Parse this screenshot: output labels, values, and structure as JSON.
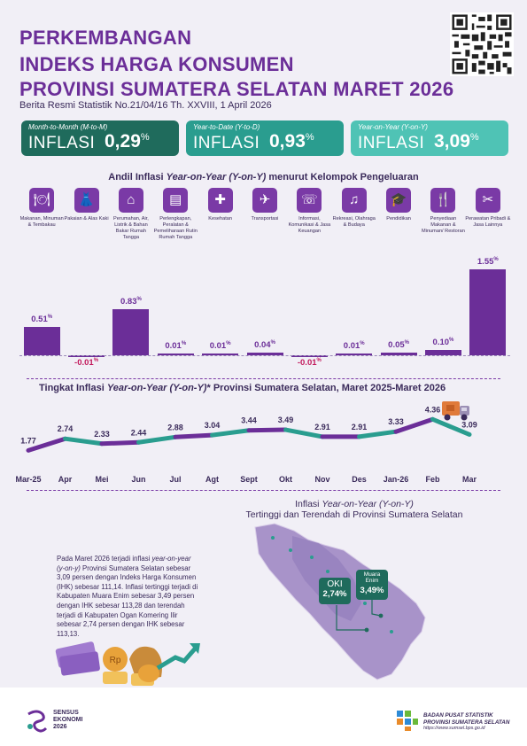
{
  "header": {
    "title_line1": "PERKEMBANGAN",
    "title_line2": "INDEKS HARGA KONSUMEN",
    "title_line3": "PROVINSI SUMATERA SELATAN MARET 2026",
    "subtitle": "Berita Resmi Statistik No.21/04/16 Th. XXVIII, 1 April 2026"
  },
  "cards": [
    {
      "type": "Month-to-Month (M-to-M)",
      "label": "INFLASI",
      "value": "0,29",
      "unit": "%",
      "color": "#1f6b5c"
    },
    {
      "type": "Year-to-Date (Y-to-D)",
      "label": "INFLASI",
      "value": "0,93",
      "unit": "%",
      "color": "#2a9d8f"
    },
    {
      "type": "Year-on-Year (Y-on-Y)",
      "label": "INFLASI",
      "value": "3,09",
      "unit": "%",
      "color": "#4fc3b5"
    }
  ],
  "bar_section": {
    "title_prefix": "Andil Inflasi ",
    "title_italic": "Year-on-Year (Y-on-Y)",
    "title_suffix": " menurut Kelompok Pengeluaran"
  },
  "line_section": {
    "title_prefix": "Tingkat Inflasi ",
    "title_italic": "Year-on-Year (Y-on-Y)",
    "title_suffix": "* Provinsi Sumatera Selatan, Maret 2025-Maret 2026"
  },
  "map_section": {
    "title_line1_prefix": "Inflasi ",
    "title_line1_italic": "Year-on-Year (Y-on-Y)",
    "title_line2": "Tertinggi dan Terendah di Provinsi Sumatera Selatan",
    "callout_low_name": "OKI",
    "callout_low_value": "2,74%",
    "callout_high_name_1": "Muara",
    "callout_high_name_2": "Enim",
    "callout_high_value": "3,49%",
    "paragraph_1": "Pada Maret 2026 terjadi inflasi",
    "paragraph_2": "year-on-year (y-on-y)",
    "paragraph_3": " Provinsi Sumatera Selatan sebesar 3,09 persen dengan Indeks Harga Konsumen (IHK) sebesar 111,14. Inflasi tertinggi terjadi di Kabupaten Muara Enim sebesar 3,49 persen dengan IHK sebesar 113,28 dan terendah terjadi di Kabupaten Ogan Komering Ilir sebesar 2,74 persen dengan IHK sebesar 113,13."
  },
  "footer": {
    "sensus_1": "SENSUS",
    "sensus_2": "EKONOMI",
    "sensus_3": "2026",
    "bps_1": "BADAN PUSAT STATISTIK",
    "bps_2": "PROVINSI SUMATERA SELATAN",
    "bps_3": "https://www.sumsel.bps.go.id"
  },
  "colors": {
    "purple": "#6b2e98",
    "teal": "#2a9d8f",
    "negative": "#c2185b"
  },
  "chart_data": [
    {
      "type": "bar",
      "categories": [
        "Makanan, Minuman & Tembakau",
        "Pakaian & Alas Kaki",
        "Perumahan, Air, Listrik & Bahan Bakar Rumah Tangga",
        "Perlengkapan, Peralatan & Pemeliharaan Rutin Rumah Tangga",
        "Kesehatan",
        "Transportasi",
        "Informasi, Komunikasi & Jasa Keuangan",
        "Rekreasi, Olahraga & Budaya",
        "Pendidikan",
        "Penyediaan Makanan & Minuman/ Restoran",
        "Perawatan Pribadi & Jasa Lainnya"
      ],
      "icons": [
        "food-icon",
        "clothing-icon",
        "house-icon",
        "appliance-icon",
        "health-icon",
        "transport-icon",
        "phone-icon",
        "recreation-icon",
        "education-icon",
        "restaurant-icon",
        "personal-care-icon"
      ],
      "values": [
        0.51,
        -0.01,
        0.83,
        0.01,
        0.01,
        0.04,
        -0.01,
        0.01,
        0.05,
        0.1,
        1.55
      ],
      "labels": [
        "0.51",
        "-0.01",
        "0.83",
        "0.01",
        "0.01",
        "0.04",
        "-0.01",
        "0.01",
        "0.05",
        "0.10",
        "1.55"
      ],
      "unit": "%"
    },
    {
      "type": "line",
      "x": [
        "Mar-25",
        "Apr",
        "Mei",
        "Jun",
        "Jul",
        "Agt",
        "Sept",
        "Okt",
        "Nov",
        "Des",
        "Jan-26",
        "Feb",
        "Mar"
      ],
      "values": [
        1.77,
        2.74,
        2.33,
        2.44,
        2.88,
        3.04,
        3.44,
        3.49,
        2.91,
        2.91,
        3.33,
        4.36,
        3.09
      ],
      "labels": [
        "1.77",
        "2.74",
        "2.33",
        "2.44",
        "2.88",
        "3.04",
        "3.44",
        "3.49",
        "2.91",
        "2.91",
        "3.33",
        "4.36",
        "3.09"
      ]
    }
  ]
}
